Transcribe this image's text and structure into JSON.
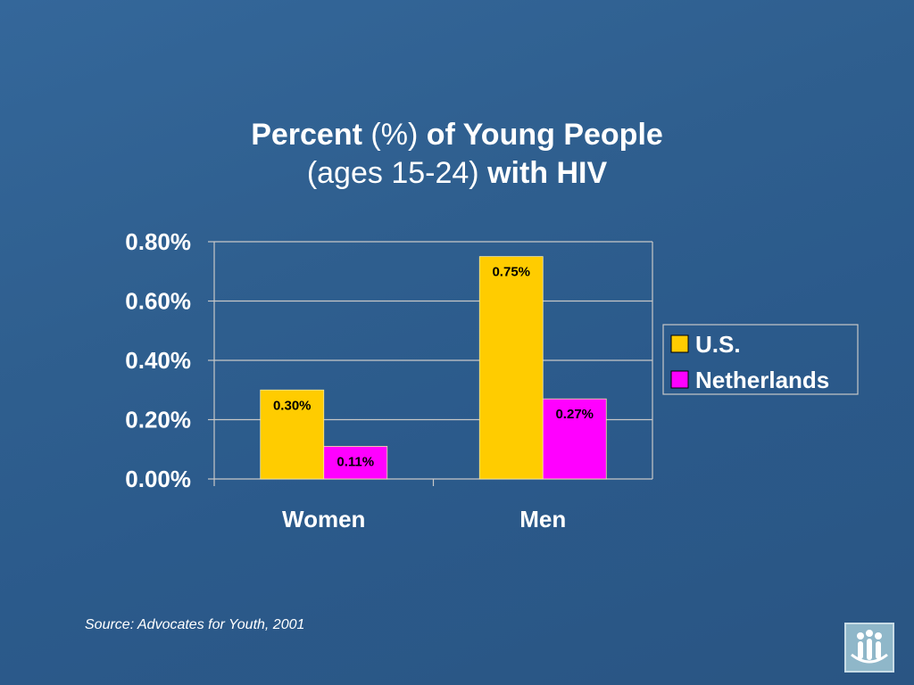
{
  "title": {
    "line1_bold1": "Percent",
    "line1_light": " (%) ",
    "line1_bold2": "of Young People",
    "line2_light": "(ages 15-24) ",
    "line2_bold": "with HIV"
  },
  "chart_data": {
    "type": "bar",
    "categories": [
      "Women",
      "Men"
    ],
    "series": [
      {
        "name": "U.S.",
        "values": [
          0.3,
          0.75
        ],
        "labels": [
          "0.30%",
          "0.75%"
        ],
        "color": "#ffcc00"
      },
      {
        "name": "Netherlands",
        "values": [
          0.11,
          0.27
        ],
        "labels": [
          "0.11%",
          "0.27%"
        ],
        "color": "#ff00ff"
      }
    ],
    "ylim": [
      0,
      0.8
    ],
    "yticks": [
      0,
      0.2,
      0.4,
      0.6,
      0.8
    ],
    "ytick_labels": [
      "0.00%",
      "0.20%",
      "0.40%",
      "0.60%",
      "0.80%"
    ],
    "grid": true,
    "legend": "right"
  },
  "source": "Source: Advocates for Youth, 2001",
  "colors": {
    "background": "#2f5f8f",
    "text": "#ffffff",
    "gridline": "#c8c8c8"
  },
  "logo_icon": "people-logo-icon"
}
